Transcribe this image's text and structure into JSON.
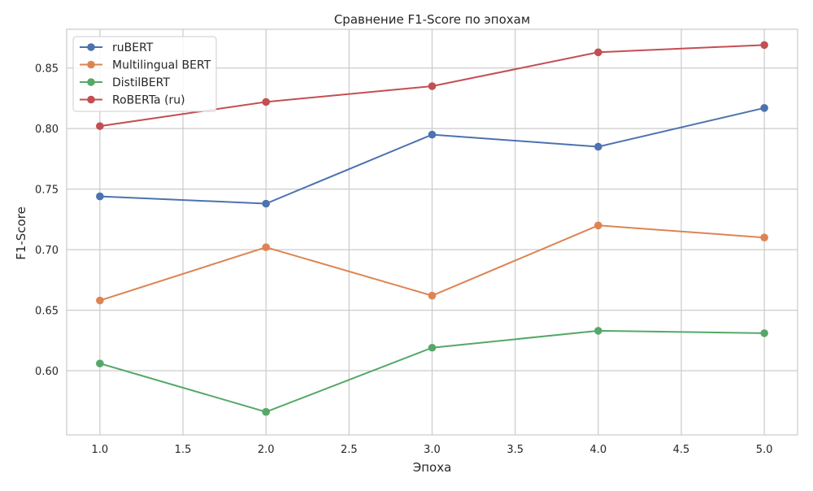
{
  "chart_data": {
    "type": "line",
    "title": "Сравнение F1-Score по эпохам",
    "xlabel": "Эпоха",
    "ylabel": "F1-Score",
    "x": [
      1.0,
      2.0,
      3.0,
      4.0,
      5.0
    ],
    "xlim": [
      0.8,
      5.2
    ],
    "ylim": [
      0.547,
      0.882
    ],
    "x_ticks": [
      "1.0",
      "1.5",
      "2.0",
      "2.5",
      "3.0",
      "3.5",
      "4.0",
      "4.5",
      "5.0"
    ],
    "y_ticks": [
      "0.60",
      "0.65",
      "0.70",
      "0.75",
      "0.80",
      "0.85"
    ],
    "grid": true,
    "legend_position": "top-left",
    "series": [
      {
        "name": "ruBERT",
        "color": "#4c72b0",
        "values": [
          0.744,
          0.738,
          0.795,
          0.785,
          0.817
        ]
      },
      {
        "name": "Multilingual BERT",
        "color": "#dd8452",
        "values": [
          0.658,
          0.702,
          0.662,
          0.72,
          0.71
        ]
      },
      {
        "name": "DistilBERT",
        "color": "#55a868",
        "values": [
          0.606,
          0.566,
          0.619,
          0.633,
          0.631
        ]
      },
      {
        "name": "RoBERTa (ru)",
        "color": "#c44e52",
        "values": [
          0.802,
          0.822,
          0.835,
          0.863,
          0.869
        ]
      }
    ]
  }
}
